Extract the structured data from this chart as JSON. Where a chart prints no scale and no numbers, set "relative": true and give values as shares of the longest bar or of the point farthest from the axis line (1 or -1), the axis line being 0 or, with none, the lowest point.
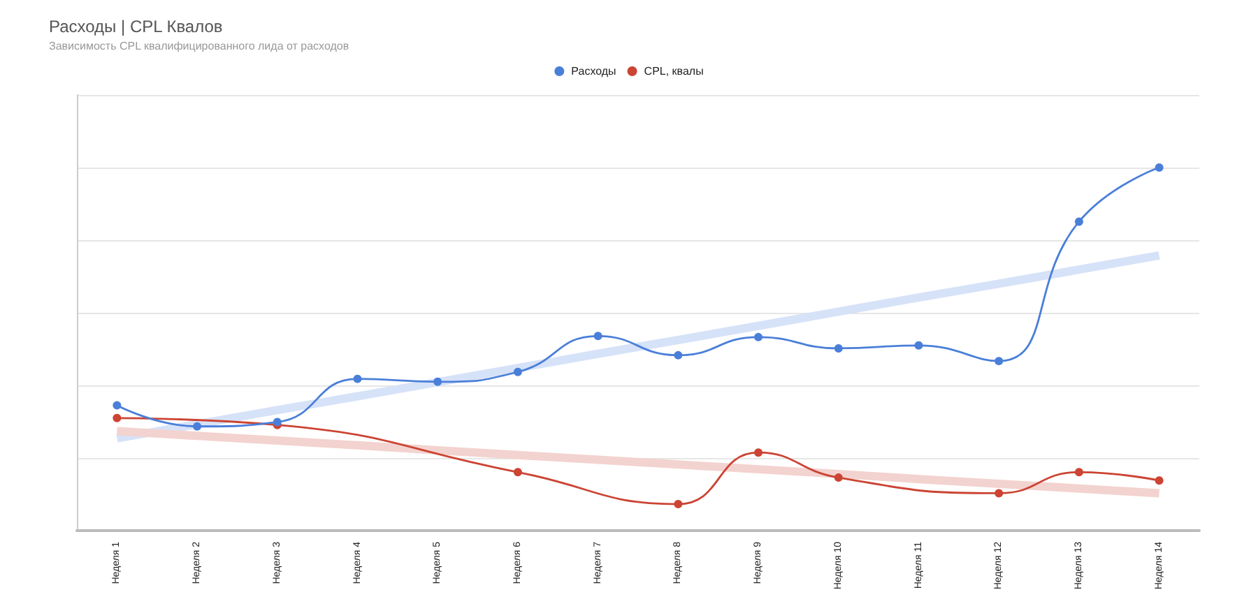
{
  "chart_data": {
    "type": "line",
    "title": "Расходы | CPL Квалов",
    "subtitle": "Зависимость CPL квалифицированного лида от расходов",
    "relative": true,
    "categories": [
      "Неделя 1",
      "Неделя 2",
      "Неделя 3",
      "Неделя 4",
      "Неделя 5",
      "Неделя 6",
      "Неделя 7",
      "Неделя 8",
      "Неделя 9",
      "Неделя 10",
      "Неделя 11",
      "Неделя 12",
      "Неделя 13",
      "Неделя 14"
    ],
    "series": [
      {
        "name": "Расходы",
        "color": "#4a7fd9",
        "values": [
          0.345,
          0.287,
          0.299,
          0.418,
          0.41,
          0.437,
          0.536,
          0.483,
          0.533,
          0.502,
          0.51,
          0.467,
          0.851,
          1
        ]
      },
      {
        "name": "CPL, квалы",
        "color": "#cc4433",
        "values": [
          0.31,
          null,
          0.291,
          null,
          null,
          0.161,
          null,
          0.073,
          0.215,
          0.146,
          null,
          0.103,
          0.161,
          0.138
        ]
      },
      {
        "color": "#d6e2f8",
        "marker": "none",
        "values": [
          0.254,
          0.293,
          0.332,
          0.37,
          0.409,
          0.448,
          0.487,
          0.525,
          0.564,
          0.603,
          0.642,
          0.68,
          0.719,
          0.758
        ]
      },
      {
        "color": "#f3d3cf",
        "marker": "none",
        "values": [
          0.274,
          0.261,
          0.248,
          0.235,
          0.221,
          0.208,
          0.195,
          0.182,
          0.169,
          0.156,
          0.142,
          0.129,
          0.116,
          0.103
        ]
      }
    ],
    "legend": "top",
    "grid": "y",
    "marker": "circle",
    "line_style": "solid"
  }
}
